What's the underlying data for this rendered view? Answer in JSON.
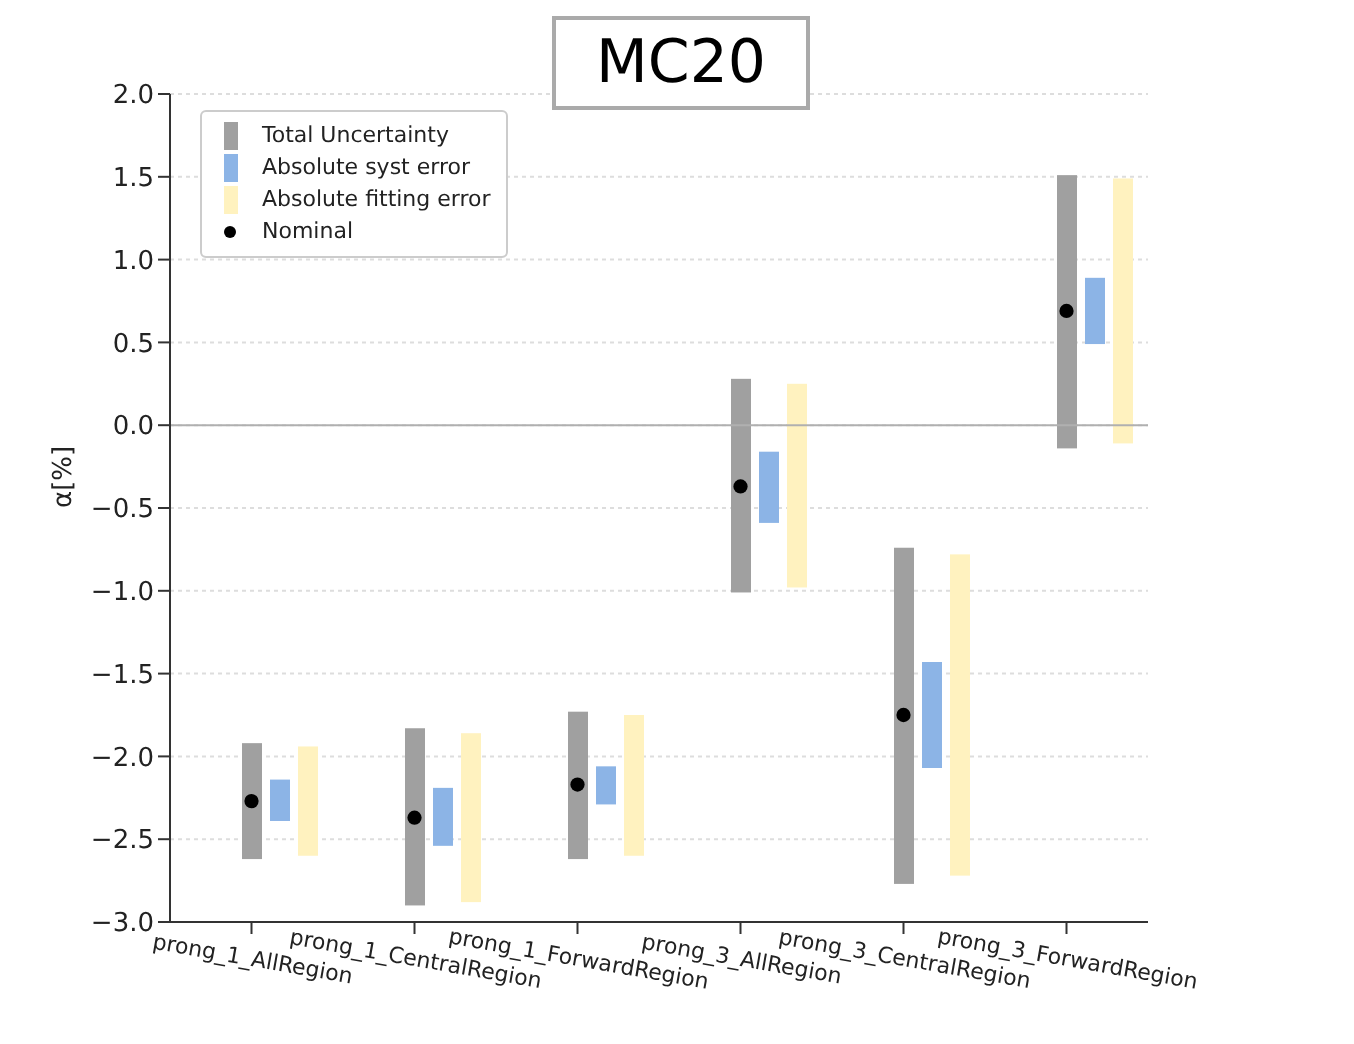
{
  "chart_data": {
    "type": "bar",
    "title": "MC20",
    "ylabel": "α[%]",
    "categories": [
      "prong_1_AllRegion",
      "prong_1_CentralRegion",
      "prong_1_ForwardRegion",
      "prong_3_AllRegion",
      "prong_3_CentralRegion",
      "prong_3_ForwardRegion"
    ],
    "series": [
      {
        "name": "Total Uncertainty",
        "color": "#a0a0a0",
        "base": [
          -2.62,
          -2.9,
          -2.62,
          -1.01,
          -2.77,
          -0.14
        ],
        "values": [
          0.7,
          1.07,
          0.89,
          1.29,
          2.03,
          1.65
        ]
      },
      {
        "name": "Absolute syst error",
        "color": "#8cb4e6",
        "base": [
          -2.39,
          -2.54,
          -2.29,
          -0.59,
          -2.07,
          0.49
        ],
        "values": [
          0.25,
          0.35,
          0.23,
          0.43,
          0.64,
          0.4
        ]
      },
      {
        "name": "Absolute fitting error",
        "color": "#fff2bf",
        "base": [
          -2.6,
          -2.88,
          -2.6,
          -0.98,
          -2.72,
          -0.11
        ],
        "values": [
          0.66,
          1.02,
          0.85,
          1.23,
          1.94,
          1.6
        ]
      },
      {
        "name": "Nominal",
        "type": "scatter",
        "color": "#000000",
        "x": [
          "prong_1_AllRegion",
          "prong_1_CentralRegion",
          "prong_1_ForwardRegion",
          "prong_3_AllRegion",
          "prong_3_CentralRegion",
          "prong_3_ForwardRegion"
        ],
        "values": [
          -2.27,
          -2.37,
          -2.17,
          -0.37,
          -1.75,
          0.69
        ]
      }
    ],
    "ylim": [
      -3,
      2
    ],
    "yticks": [
      {
        "value": -3,
        "label": "−3.0"
      },
      {
        "value": -2.5,
        "label": "−2.5"
      },
      {
        "value": -2,
        "label": "−2.0"
      },
      {
        "value": -1.5,
        "label": "−1.5"
      },
      {
        "value": -1,
        "label": "−1.0"
      },
      {
        "value": -0.5,
        "label": "−0.5"
      },
      {
        "value": 0,
        "label": "0.0"
      },
      {
        "value": 0.5,
        "label": "0.5"
      },
      {
        "value": 1,
        "label": "1.0"
      },
      {
        "value": 1.5,
        "label": "1.5"
      },
      {
        "value": 2,
        "label": "2.0"
      }
    ],
    "grid": "y",
    "legend": "top left",
    "marker": "circle",
    "ref_lines": [
      {
        "axis": "y",
        "value": 0,
        "color": "#b0b0b0"
      }
    ]
  }
}
